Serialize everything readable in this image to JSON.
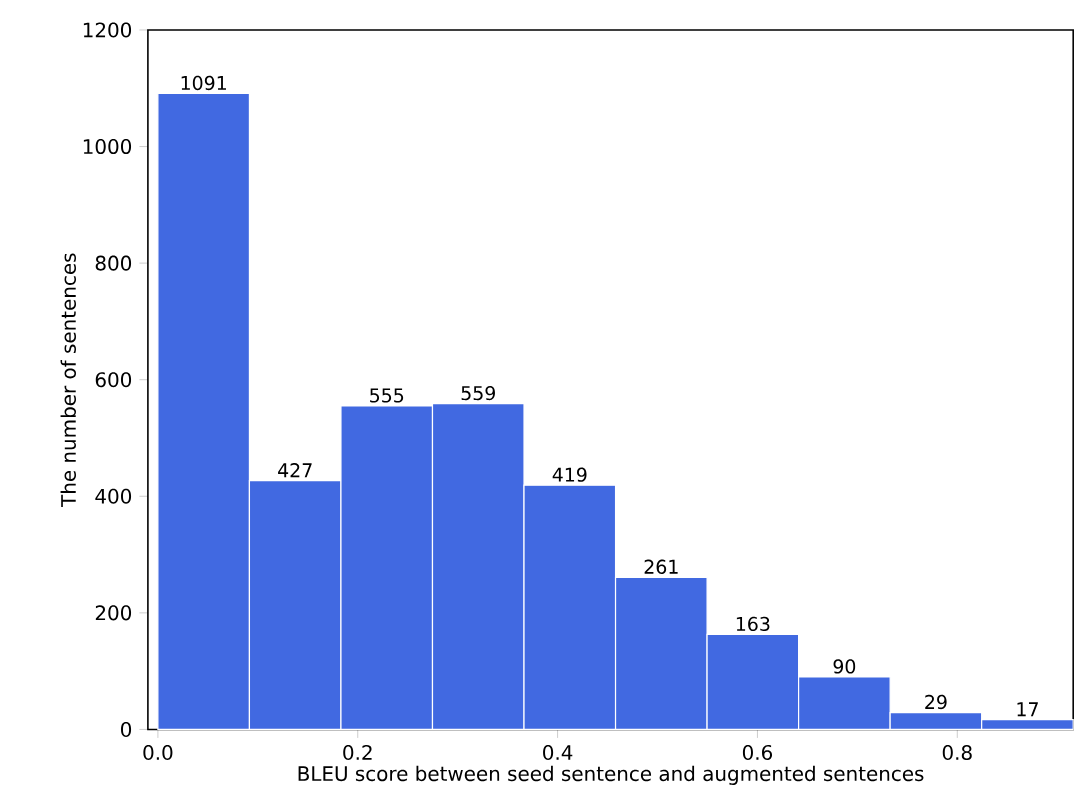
{
  "chart_data": {
    "type": "histogram",
    "xlabel": "BLEU score between seed sentence and augmented sentences",
    "ylabel": "The number of sentences",
    "bins": [
      0,
      0.0916,
      0.1832,
      0.2748,
      0.3664,
      0.458,
      0.5496,
      0.6412,
      0.7328,
      0.8244,
      0.916
    ],
    "values": [
      1091,
      427,
      555,
      559,
      419,
      261,
      163,
      90,
      29,
      17
    ],
    "color": "#4169e1",
    "data_labels": true,
    "xlim": [
      -0.01,
      0.916
    ],
    "ylim": [
      0,
      1200
    ],
    "xticks": [
      {
        "value": 0,
        "label": "0.0"
      },
      {
        "value": 0.2,
        "label": "0.2"
      },
      {
        "value": 0.4,
        "label": "0.4"
      },
      {
        "value": 0.6,
        "label": "0.6"
      },
      {
        "value": 0.8,
        "label": "0.8"
      }
    ],
    "yticks": [
      0,
      200,
      400,
      600,
      800,
      1000,
      1200
    ],
    "grid": false
  }
}
